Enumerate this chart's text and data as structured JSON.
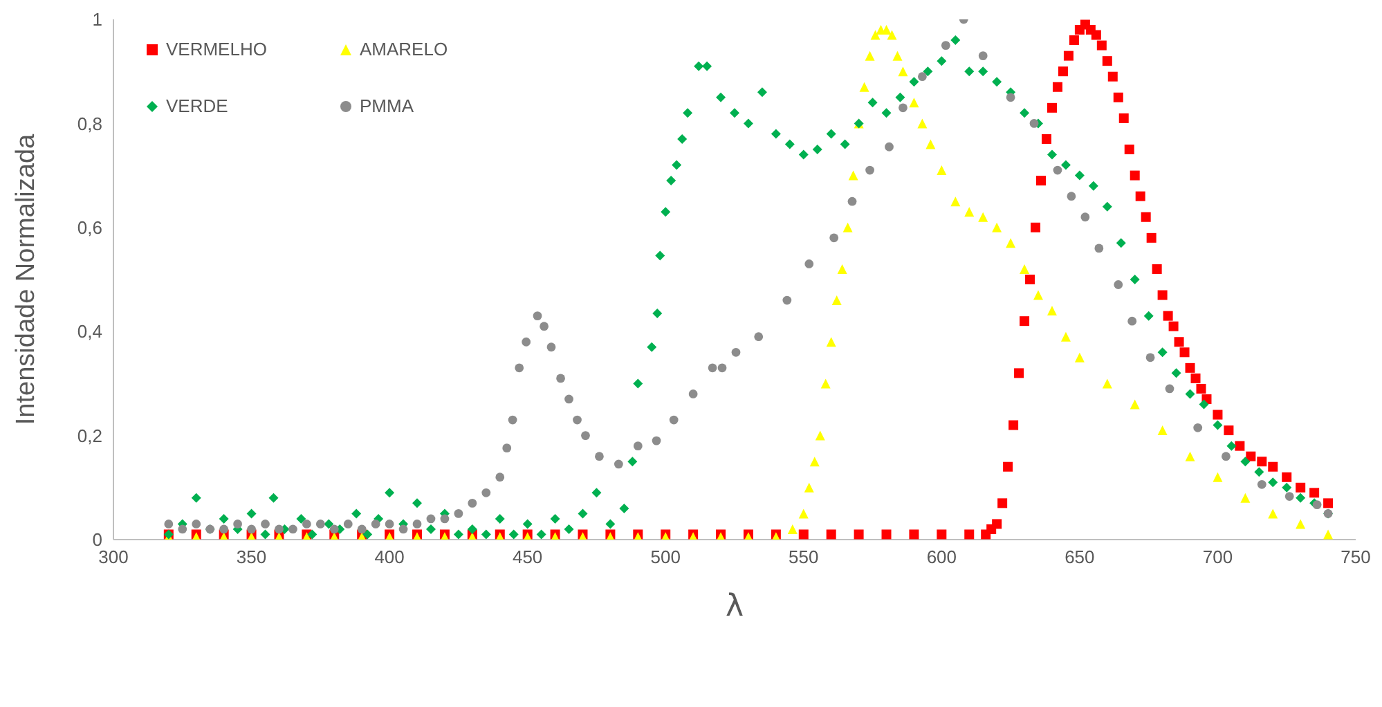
{
  "chart_data": {
    "type": "scatter",
    "xlabel": "λ",
    "ylabel": "Intensidade Normalizada",
    "xlim": [
      300,
      750
    ],
    "xticks": [
      300,
      350,
      400,
      450,
      500,
      550,
      600,
      650,
      700,
      750
    ],
    "ylim": [
      0,
      1
    ],
    "yticks": [
      0,
      {
        "value": 0.2,
        "label": "0,2"
      },
      {
        "value": 0.4,
        "label": "0,4"
      },
      {
        "value": 0.6,
        "label": "0,6"
      },
      {
        "value": 0.8,
        "label": "0,8"
      },
      1
    ],
    "legend": "top left",
    "series": [
      {
        "name": "VERMELHO",
        "color": "#ff0000",
        "marker": "square",
        "x": [
          320,
          330,
          340,
          350,
          360,
          370,
          380,
          390,
          400,
          410,
          420,
          430,
          440,
          450,
          460,
          470,
          480,
          490,
          500,
          510,
          520,
          530,
          540,
          550,
          560,
          570,
          580,
          590,
          600,
          610,
          616,
          618,
          620,
          622,
          624,
          626,
          628,
          630,
          632,
          634,
          636,
          638,
          640,
          642,
          644,
          646,
          648,
          650,
          652,
          654,
          656,
          658,
          660,
          662,
          664,
          666,
          668,
          670,
          672,
          674,
          676,
          678,
          680,
          682,
          684,
          686,
          688,
          690,
          692,
          694,
          696,
          700,
          704,
          708,
          712,
          716,
          720,
          725,
          730,
          735,
          740
        ],
        "values": [
          0.01,
          0.01,
          0.01,
          0.01,
          0.01,
          0.01,
          0.01,
          0.01,
          0.01,
          0.01,
          0.01,
          0.01,
          0.01,
          0.01,
          0.01,
          0.01,
          0.01,
          0.01,
          0.01,
          0.01,
          0.01,
          0.01,
          0.01,
          0.01,
          0.01,
          0.01,
          0.01,
          0.01,
          0.01,
          0.01,
          0.01,
          0.02,
          0.03,
          0.07,
          0.14,
          0.22,
          0.32,
          0.42,
          0.5,
          0.6,
          0.69,
          0.77,
          0.83,
          0.87,
          0.9,
          0.93,
          0.96,
          0.98,
          0.99,
          0.98,
          0.97,
          0.95,
          0.92,
          0.89,
          0.85,
          0.81,
          0.75,
          0.7,
          0.66,
          0.62,
          0.58,
          0.52,
          0.47,
          0.43,
          0.41,
          0.38,
          0.36,
          0.33,
          0.31,
          0.29,
          0.27,
          0.24,
          0.21,
          0.18,
          0.16,
          0.15,
          0.14,
          0.12,
          0.1,
          0.09,
          0.07
        ]
      },
      {
        "name": "AMARELO",
        "color": "#ffff00",
        "marker": "triangle",
        "x": [
          320,
          330,
          340,
          350,
          360,
          370,
          380,
          390,
          400,
          410,
          420,
          430,
          440,
          450,
          460,
          470,
          480,
          490,
          500,
          510,
          520,
          530,
          540,
          546,
          550,
          552,
          554,
          556,
          558,
          560,
          562,
          564,
          566,
          568,
          570,
          572,
          574,
          576,
          578,
          580,
          582,
          584,
          586,
          590,
          593,
          596,
          600,
          605,
          610,
          615,
          620,
          625,
          630,
          635,
          640,
          645,
          650,
          660,
          670,
          680,
          690,
          700,
          710,
          720,
          730,
          740
        ],
        "values": [
          0.005,
          0.005,
          0.005,
          0.005,
          0.005,
          0.005,
          0.005,
          0.005,
          0.005,
          0.005,
          0.005,
          0.005,
          0.005,
          0.005,
          0.005,
          0.005,
          0.005,
          0.005,
          0.005,
          0.005,
          0.005,
          0.005,
          0.005,
          0.02,
          0.05,
          0.1,
          0.15,
          0.2,
          0.3,
          0.38,
          0.46,
          0.52,
          0.6,
          0.7,
          0.8,
          0.87,
          0.93,
          0.97,
          0.98,
          0.98,
          0.97,
          0.93,
          0.9,
          0.84,
          0.8,
          0.76,
          0.71,
          0.65,
          0.63,
          0.62,
          0.6,
          0.57,
          0.52,
          0.47,
          0.44,
          0.39,
          0.35,
          0.3,
          0.26,
          0.21,
          0.16,
          0.12,
          0.08,
          0.05,
          0.03,
          0.01
        ]
      },
      {
        "name": "VERDE",
        "color": "#00b050",
        "marker": "diamond",
        "x": [
          320,
          325,
          330,
          335,
          340,
          345,
          350,
          355,
          358,
          362,
          368,
          372,
          378,
          382,
          388,
          392,
          396,
          400,
          405,
          410,
          415,
          420,
          425,
          430,
          435,
          440,
          445,
          450,
          455,
          460,
          465,
          470,
          475,
          480,
          485,
          488,
          490,
          495,
          497,
          498,
          500,
          502,
          504,
          506,
          508,
          512,
          515,
          520,
          525,
          530,
          535,
          540,
          545,
          550,
          555,
          560,
          565,
          570,
          575,
          580,
          585,
          590,
          595,
          600,
          605,
          610,
          615,
          620,
          625,
          630,
          635,
          640,
          645,
          650,
          655,
          660,
          665,
          670,
          675,
          680,
          685,
          690,
          695,
          700,
          705,
          710,
          715,
          720,
          725,
          730,
          735,
          740
        ],
        "values": [
          0.01,
          0.03,
          0.08,
          0.02,
          0.04,
          0.02,
          0.05,
          0.01,
          0.08,
          0.02,
          0.04,
          0.01,
          0.03,
          0.02,
          0.05,
          0.01,
          0.04,
          0.09,
          0.03,
          0.07,
          0.02,
          0.05,
          0.01,
          0.02,
          0.01,
          0.04,
          0.01,
          0.03,
          0.01,
          0.04,
          0.02,
          0.05,
          0.09,
          0.03,
          0.06,
          0.15,
          0.3,
          0.37,
          0.435,
          0.546,
          0.63,
          0.69,
          0.72,
          0.77,
          0.82,
          0.91,
          0.91,
          0.85,
          0.82,
          0.8,
          0.86,
          0.78,
          0.76,
          0.74,
          0.75,
          0.78,
          0.76,
          0.8,
          0.84,
          0.82,
          0.85,
          0.88,
          0.9,
          0.92,
          0.96,
          0.9,
          0.9,
          0.88,
          0.86,
          0.82,
          0.8,
          0.74,
          0.72,
          0.7,
          0.68,
          0.64,
          0.57,
          0.5,
          0.43,
          0.36,
          0.32,
          0.28,
          0.26,
          0.22,
          0.18,
          0.15,
          0.13,
          0.11,
          0.1,
          0.08,
          0.07,
          0.05
        ]
      },
      {
        "name": "PMMA",
        "color": "#8c8c8c",
        "marker": "circle",
        "x": [
          320,
          325,
          330,
          335,
          340,
          345,
          350,
          355,
          360,
          365,
          370,
          375,
          380,
          385,
          390,
          395,
          400,
          405,
          410,
          415,
          420,
          425,
          430,
          435,
          440,
          442.5,
          444.6,
          447,
          449.5,
          453.6,
          456,
          458.6,
          462,
          465,
          468,
          471,
          476,
          483,
          490,
          496.7,
          503,
          510,
          517,
          520.5,
          525.5,
          533.7,
          544,
          552,
          561,
          567.6,
          574,
          581,
          586,
          593,
          601.5,
          608,
          615,
          625,
          633.5,
          642,
          647,
          652,
          657,
          664,
          669,
          675.6,
          682.6,
          692.8,
          703,
          716,
          726,
          736,
          740
        ],
        "values": [
          0.03,
          0.02,
          0.03,
          0.02,
          0.02,
          0.03,
          0.02,
          0.03,
          0.02,
          0.02,
          0.03,
          0.03,
          0.02,
          0.03,
          0.02,
          0.03,
          0.03,
          0.02,
          0.03,
          0.04,
          0.04,
          0.05,
          0.07,
          0.09,
          0.12,
          0.176,
          0.23,
          0.33,
          0.38,
          0.43,
          0.41,
          0.37,
          0.31,
          0.27,
          0.23,
          0.2,
          0.16,
          0.145,
          0.18,
          0.19,
          0.23,
          0.28,
          0.33,
          0.33,
          0.36,
          0.39,
          0.46,
          0.53,
          0.58,
          0.65,
          0.71,
          0.755,
          0.83,
          0.89,
          0.95,
          1,
          0.93,
          0.85,
          0.8,
          0.71,
          0.66,
          0.62,
          0.56,
          0.49,
          0.42,
          0.35,
          0.29,
          0.215,
          0.16,
          0.106,
          0.083,
          0.067,
          0.05
        ]
      }
    ]
  }
}
